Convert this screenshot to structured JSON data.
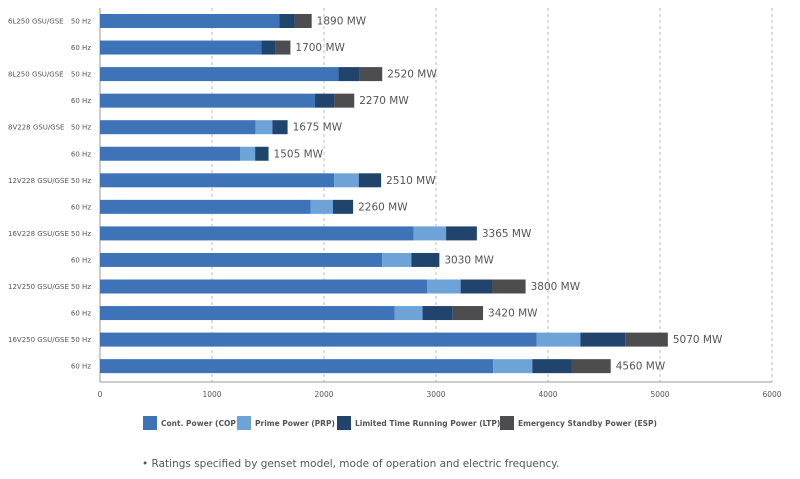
{
  "chart_data": {
    "type": "bar",
    "orientation": "horizontal",
    "stacked": true,
    "xlim": [
      0,
      6000
    ],
    "x_ticks": [
      "0",
      "1000",
      "2000",
      "3000",
      "4000",
      "5000",
      "6000"
    ],
    "grid": "vertical dashed",
    "legend_position": "bottom",
    "colors": {
      "cop": "#3f73b8",
      "prp": "#6ea3d8",
      "ltp": "#21446d",
      "esp": "#4d4d4f",
      "grid": "#bdbdbd",
      "text": "#555555"
    },
    "series": [
      {
        "key": "cop",
        "name": "Cont. Power (COP)"
      },
      {
        "key": "prp",
        "name": "Prime Power (PRP)"
      },
      {
        "key": "ltp",
        "name": "Limited Time Running Power (LTP)"
      },
      {
        "key": "esp",
        "name": "Emergency Standby Power (ESP)"
      }
    ],
    "rows": [
      {
        "group": "6L250 GSU/GSE",
        "freq": "50 Hz",
        "cop": 1600,
        "prp": 0,
        "ltp": 140,
        "esp": 150,
        "total_label": "1890 MW"
      },
      {
        "group": "",
        "freq": "60 Hz",
        "cop": 1440,
        "prp": 0,
        "ltp": 130,
        "esp": 130,
        "total_label": "1700 MW"
      },
      {
        "group": "8L250 GSU/GSE",
        "freq": "50 Hz",
        "cop": 2130,
        "prp": 0,
        "ltp": 190,
        "esp": 200,
        "total_label": "2520 MW"
      },
      {
        "group": "",
        "freq": "60 Hz",
        "cop": 1920,
        "prp": 0,
        "ltp": 170,
        "esp": 180,
        "total_label": "2270 MW"
      },
      {
        "group": "8V228 GSU/GSE",
        "freq": "50 Hz",
        "cop": 1390,
        "prp": 150,
        "ltp": 135,
        "esp": 0,
        "total_label": "1675 MW"
      },
      {
        "group": "",
        "freq": "60 Hz",
        "cop": 1250,
        "prp": 135,
        "ltp": 120,
        "esp": 0,
        "total_label": "1505 MW"
      },
      {
        "group": "12V228 GSU/GSE",
        "freq": "50 Hz",
        "cop": 2090,
        "prp": 220,
        "ltp": 200,
        "esp": 0,
        "total_label": "2510 MW"
      },
      {
        "group": "",
        "freq": "60 Hz",
        "cop": 1880,
        "prp": 200,
        "ltp": 180,
        "esp": 0,
        "total_label": "2260 MW"
      },
      {
        "group": "16V228 GSU/GSE",
        "freq": "50 Hz",
        "cop": 2800,
        "prp": 290,
        "ltp": 275,
        "esp": 0,
        "total_label": "3365 MW"
      },
      {
        "group": "",
        "freq": "60 Hz",
        "cop": 2520,
        "prp": 260,
        "ltp": 250,
        "esp": 0,
        "total_label": "3030 MW"
      },
      {
        "group": "12V250 GSU/GSE",
        "freq": "50 Hz",
        "cop": 2920,
        "prp": 300,
        "ltp": 280,
        "esp": 300,
        "total_label": "3800 MW"
      },
      {
        "group": "",
        "freq": "60 Hz",
        "cop": 2630,
        "prp": 250,
        "ltp": 270,
        "esp": 270,
        "total_label": "3420 MW"
      },
      {
        "group": "16V250 GSU/GSE",
        "freq": "50 Hz",
        "cop": 3900,
        "prp": 390,
        "ltp": 400,
        "esp": 380,
        "total_label": "5070 MW"
      },
      {
        "group": "",
        "freq": "60 Hz",
        "cop": 3510,
        "prp": 350,
        "ltp": 350,
        "esp": 350,
        "total_label": "4560 MW"
      }
    ]
  },
  "footnote": "• Ratings specified by genset model, mode of operation and electric frequency."
}
